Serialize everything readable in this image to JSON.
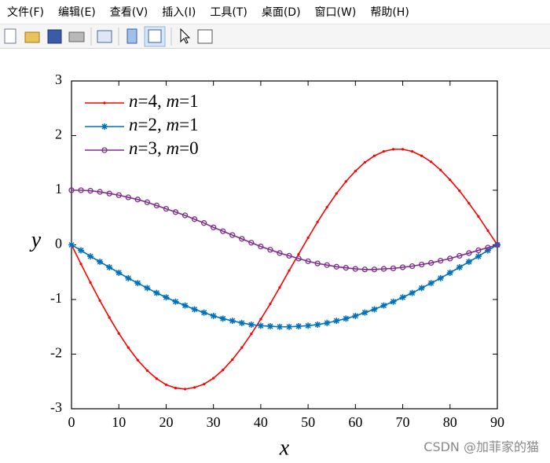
{
  "menu": [
    "文件(F)",
    "编辑(E)",
    "查看(V)",
    "插入(I)",
    "工具(T)",
    "桌面(D)",
    "窗口(W)",
    "帮助(H)"
  ],
  "watermark": "CSDN @加菲家的猫",
  "chart_data": {
    "type": "line",
    "xlabel": "x",
    "ylabel": "y",
    "xlim": [
      0,
      90
    ],
    "ylim": [
      -3,
      3
    ],
    "xticks": [
      0,
      10,
      20,
      30,
      40,
      50,
      60,
      70,
      80,
      90
    ],
    "yticks": [
      -3,
      -2,
      -1,
      0,
      1,
      2,
      3
    ],
    "legend": "upper left",
    "x": [
      0,
      2,
      4,
      6,
      8,
      10,
      12,
      14,
      16,
      18,
      20,
      22,
      24,
      26,
      28,
      30,
      32,
      34,
      36,
      38,
      40,
      42,
      44,
      46,
      48,
      50,
      52,
      54,
      56,
      58,
      60,
      62,
      64,
      66,
      68,
      70,
      72,
      74,
      76,
      78,
      80,
      82,
      84,
      86,
      88,
      90
    ],
    "series": [
      {
        "name": "n=4, m=1",
        "color": "#ff0000",
        "marker": "dot",
        "values": [
          0,
          -0.35,
          -0.69,
          -1.02,
          -1.33,
          -1.62,
          -1.88,
          -2.11,
          -2.3,
          -2.45,
          -2.56,
          -2.62,
          -2.64,
          -2.61,
          -2.55,
          -2.44,
          -2.29,
          -2.1,
          -1.88,
          -1.63,
          -1.36,
          -1.08,
          -0.78,
          -0.47,
          -0.17,
          0.13,
          0.42,
          0.69,
          0.94,
          1.16,
          1.35,
          1.51,
          1.63,
          1.71,
          1.75,
          1.75,
          1.71,
          1.63,
          1.52,
          1.37,
          1.19,
          0.99,
          0.76,
          0.52,
          0.26,
          0
        ]
      },
      {
        "name": "n=2, m=1",
        "color": "#0072bd",
        "marker": "star",
        "values": [
          0,
          -0.1,
          -0.21,
          -0.31,
          -0.41,
          -0.51,
          -0.61,
          -0.7,
          -0.79,
          -0.88,
          -0.96,
          -1.04,
          -1.11,
          -1.18,
          -1.24,
          -1.3,
          -1.35,
          -1.39,
          -1.43,
          -1.46,
          -1.48,
          -1.49,
          -1.5,
          -1.5,
          -1.49,
          -1.48,
          -1.46,
          -1.43,
          -1.39,
          -1.35,
          -1.3,
          -1.24,
          -1.18,
          -1.11,
          -1.04,
          -0.96,
          -0.88,
          -0.79,
          -0.7,
          -0.61,
          -0.51,
          -0.41,
          -0.31,
          -0.21,
          -0.1,
          0
        ]
      },
      {
        "name": "n=3, m=0",
        "color": "#7e2f8e",
        "marker": "circle",
        "values": [
          1,
          1.0,
          0.99,
          0.97,
          0.94,
          0.91,
          0.87,
          0.83,
          0.78,
          0.72,
          0.66,
          0.6,
          0.54,
          0.47,
          0.4,
          0.32,
          0.25,
          0.18,
          0.11,
          0.04,
          -0.03,
          -0.09,
          -0.15,
          -0.2,
          -0.25,
          -0.3,
          -0.34,
          -0.37,
          -0.4,
          -0.42,
          -0.44,
          -0.45,
          -0.45,
          -0.44,
          -0.43,
          -0.41,
          -0.39,
          -0.36,
          -0.33,
          -0.29,
          -0.25,
          -0.2,
          -0.15,
          -0.1,
          -0.05,
          0
        ]
      }
    ]
  }
}
